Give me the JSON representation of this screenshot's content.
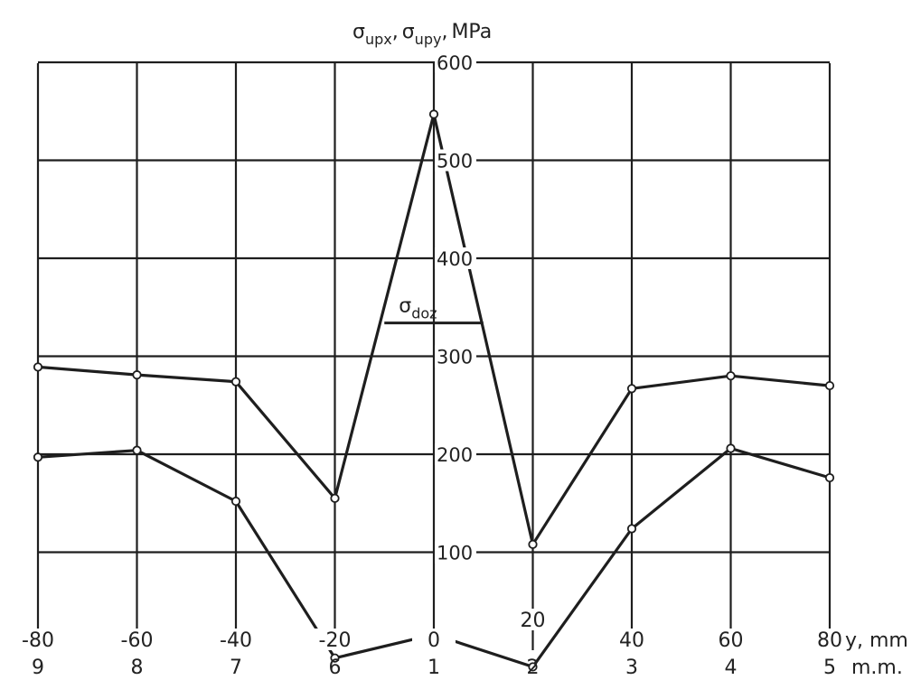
{
  "chart_data": {
    "type": "line",
    "ylabel": {
      "sym1": "σ",
      "sub1": "upx",
      "sep1": ",",
      "sym2": "σ",
      "sub2": "upy",
      "sep2": ",",
      "unit": "MPa"
    },
    "xlabel": "y, mm",
    "x_secondary_label": "m.m.",
    "x": [
      -80,
      -60,
      -40,
      -20,
      0,
      20,
      40,
      60,
      80
    ],
    "x_tick_labels": [
      "-80",
      "-60",
      "-40",
      "-20",
      "0",
      "20",
      "40",
      "60",
      "80"
    ],
    "x_secondary_labels": [
      "9",
      "8",
      "7",
      "6",
      "1",
      "2",
      "3",
      "4",
      "5"
    ],
    "y_ticks": [
      100,
      200,
      300,
      400,
      500,
      600
    ],
    "ylim": [
      0,
      600
    ],
    "xlim": [
      -80,
      80
    ],
    "grid": true,
    "series": [
      {
        "values": [
          289,
          281,
          274,
          155,
          547,
          108,
          267,
          280,
          270
        ]
      },
      {
        "values": [
          197,
          204,
          152,
          -8,
          16,
          -17,
          124,
          206,
          176
        ]
      }
    ],
    "annotations": [
      {
        "label": "σ",
        "sub": "doz",
        "y": 334,
        "x_from": -10,
        "x_to": 10
      }
    ]
  }
}
